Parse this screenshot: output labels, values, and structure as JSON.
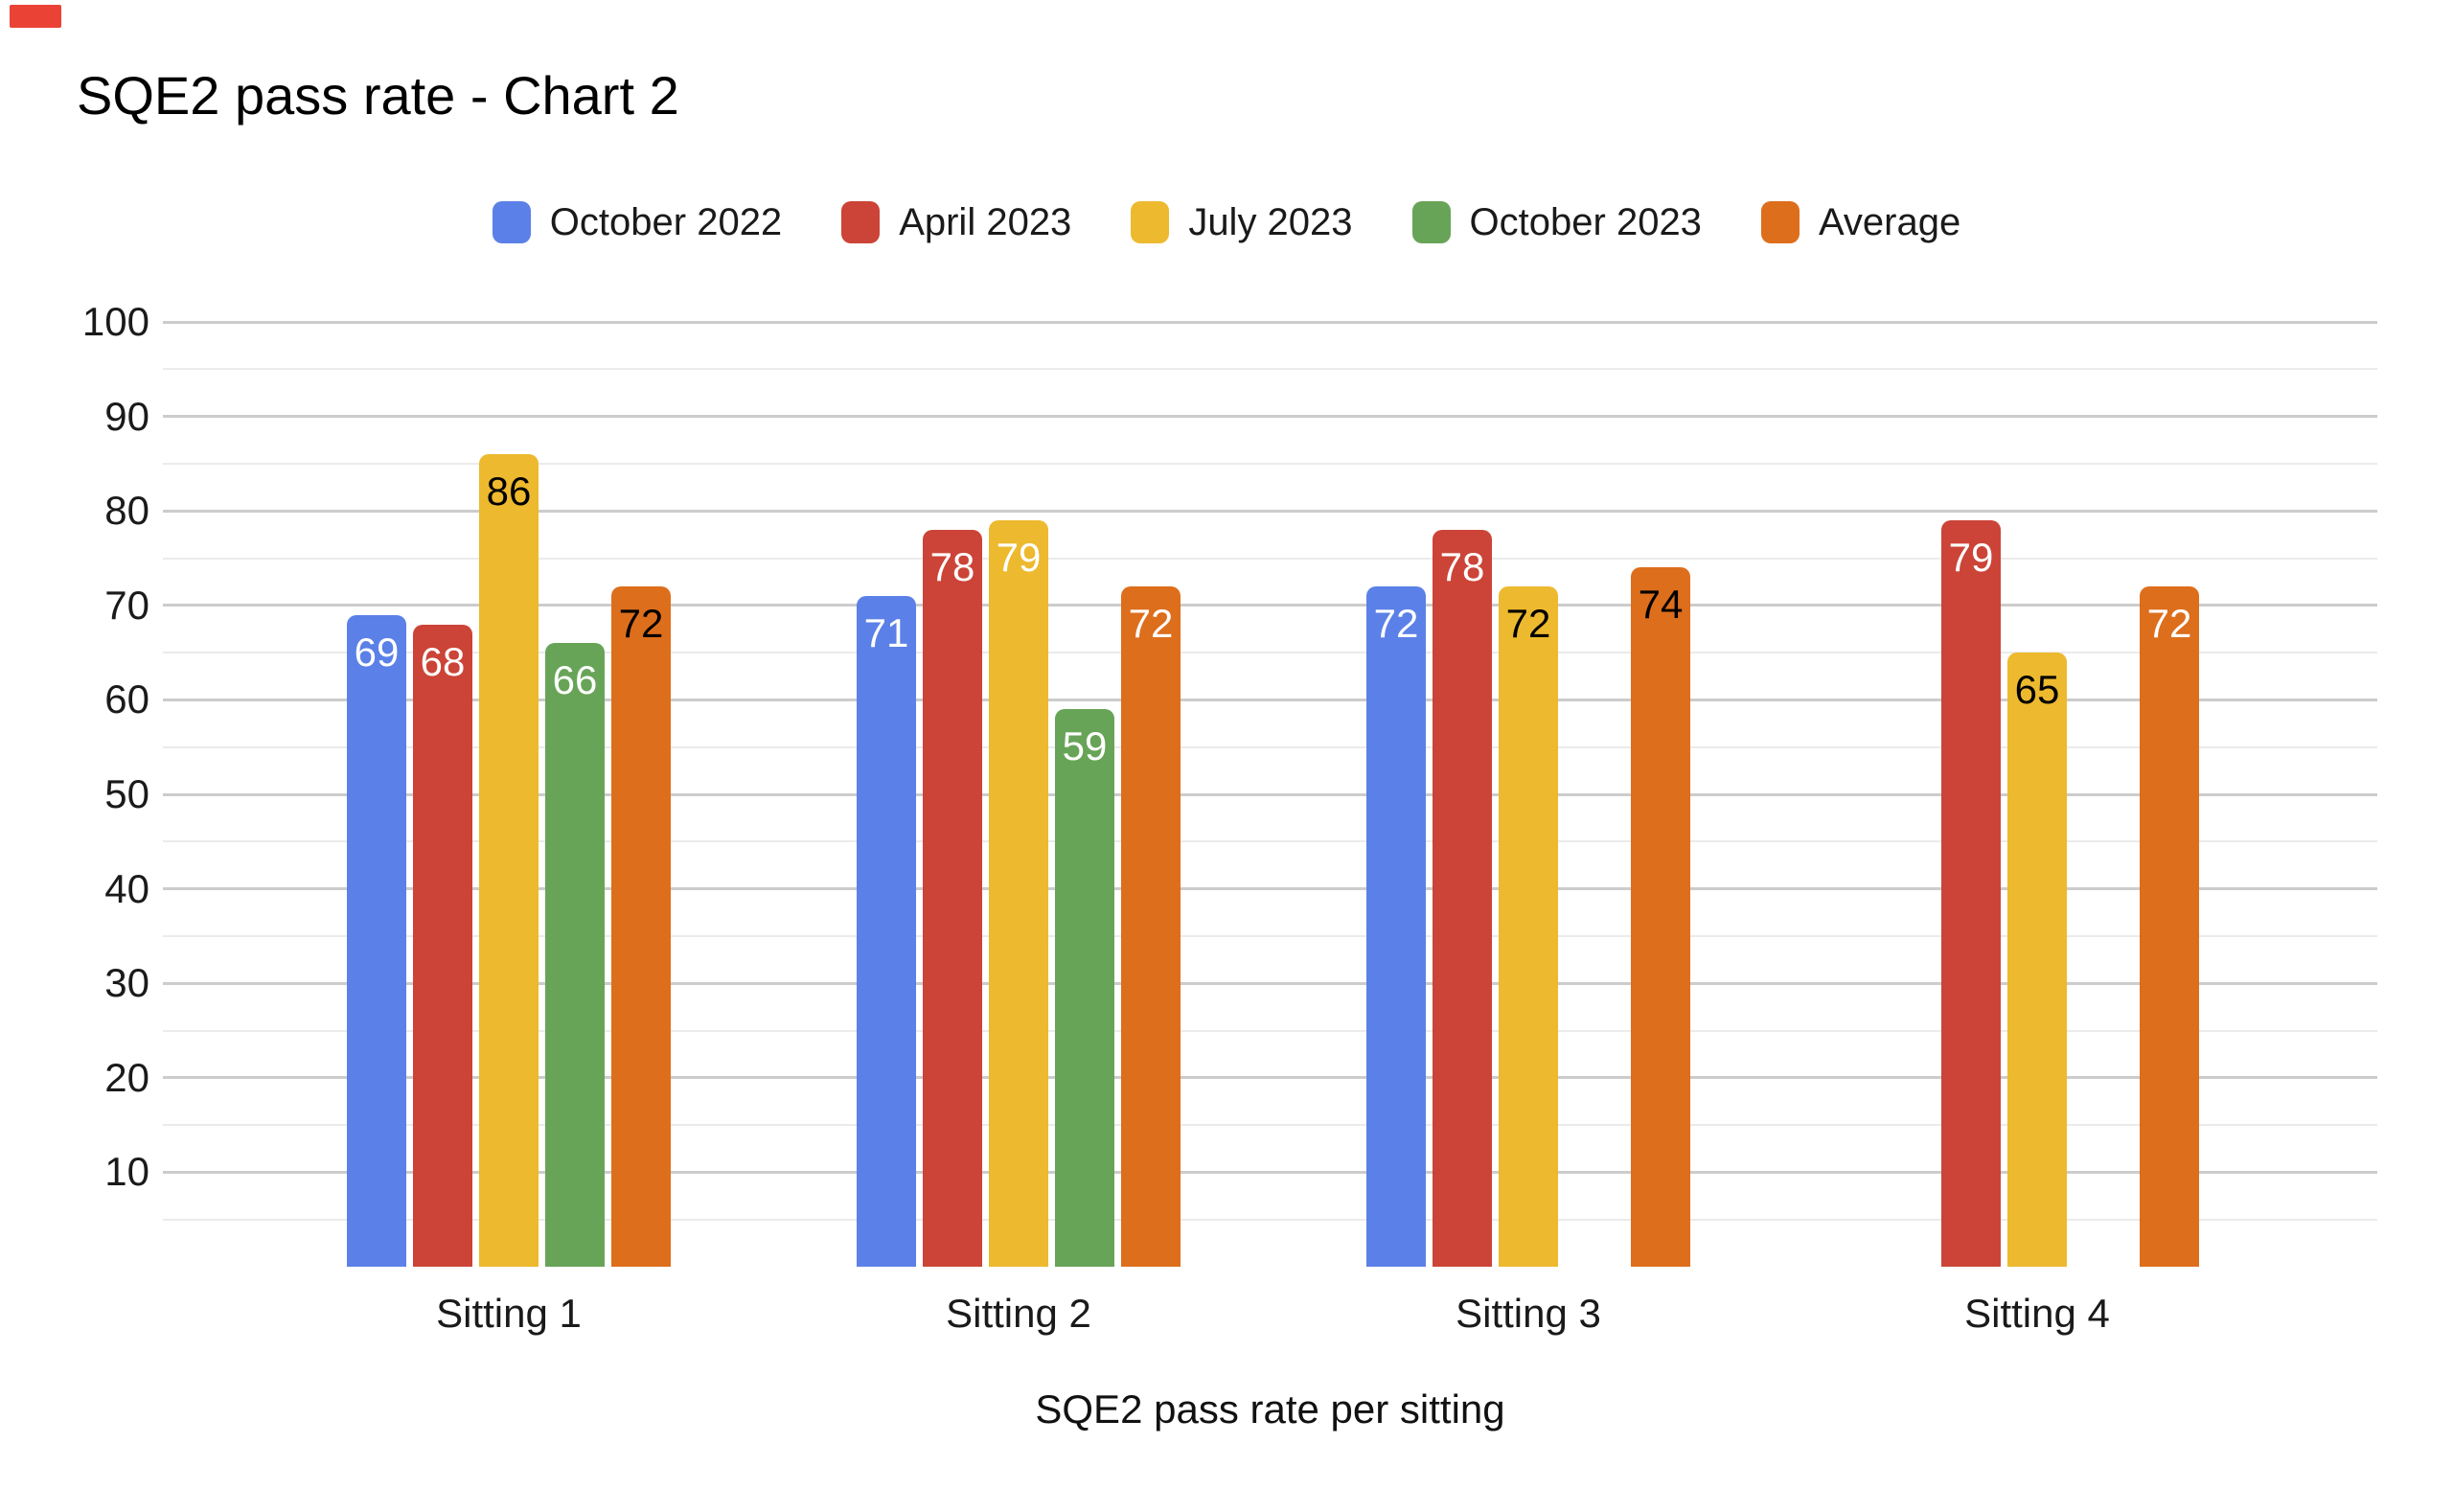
{
  "decoration": {
    "top_left_marker_color": "#ea4335"
  },
  "title": "SQE2 pass rate - Chart 2",
  "chart_data": {
    "type": "bar",
    "title": "SQE2 pass rate - Chart 2",
    "xlabel": "SQE2 pass rate per sitting",
    "ylabel": "",
    "ylim": [
      0,
      100
    ],
    "yticks": [
      10,
      20,
      30,
      40,
      50,
      60,
      70,
      80,
      90,
      100
    ],
    "minor_grid_step": 5,
    "grid": true,
    "legend_position": "top",
    "categories": [
      "Sitting 1",
      "Sitting 2",
      "Sitting 3",
      "Sitting 4"
    ],
    "series": [
      {
        "name": "October 2022",
        "color": "#5b80e7",
        "values": [
          69,
          71,
          72,
          null
        ],
        "label_colors": [
          "#ffffff",
          "#ffffff",
          "#ffffff",
          null
        ]
      },
      {
        "name": "April 2023",
        "color": "#cb4437",
        "values": [
          68,
          78,
          78,
          79
        ],
        "label_colors": [
          "#ffffff",
          "#ffffff",
          "#ffffff",
          "#ffffff"
        ]
      },
      {
        "name": "July 2023",
        "color": "#edb92e",
        "values": [
          86,
          79,
          72,
          65
        ],
        "label_colors": [
          "#000000",
          "#ffffff",
          "#000000",
          "#000000"
        ]
      },
      {
        "name": "October 2023",
        "color": "#68a457",
        "values": [
          66,
          59,
          null,
          null
        ],
        "label_colors": [
          "#ffffff",
          "#ffffff",
          null,
          null
        ]
      },
      {
        "name": "Average",
        "color": "#dd6e1c",
        "values": [
          72,
          72,
          74,
          72
        ],
        "label_colors": [
          "#000000",
          "#ffffff",
          "#000000",
          "#ffffff"
        ]
      }
    ],
    "style": {
      "grid_major_color": "#cccccc",
      "grid_minor_color": "#ebebeb",
      "tick_text_color": "#1a1a1a"
    }
  }
}
